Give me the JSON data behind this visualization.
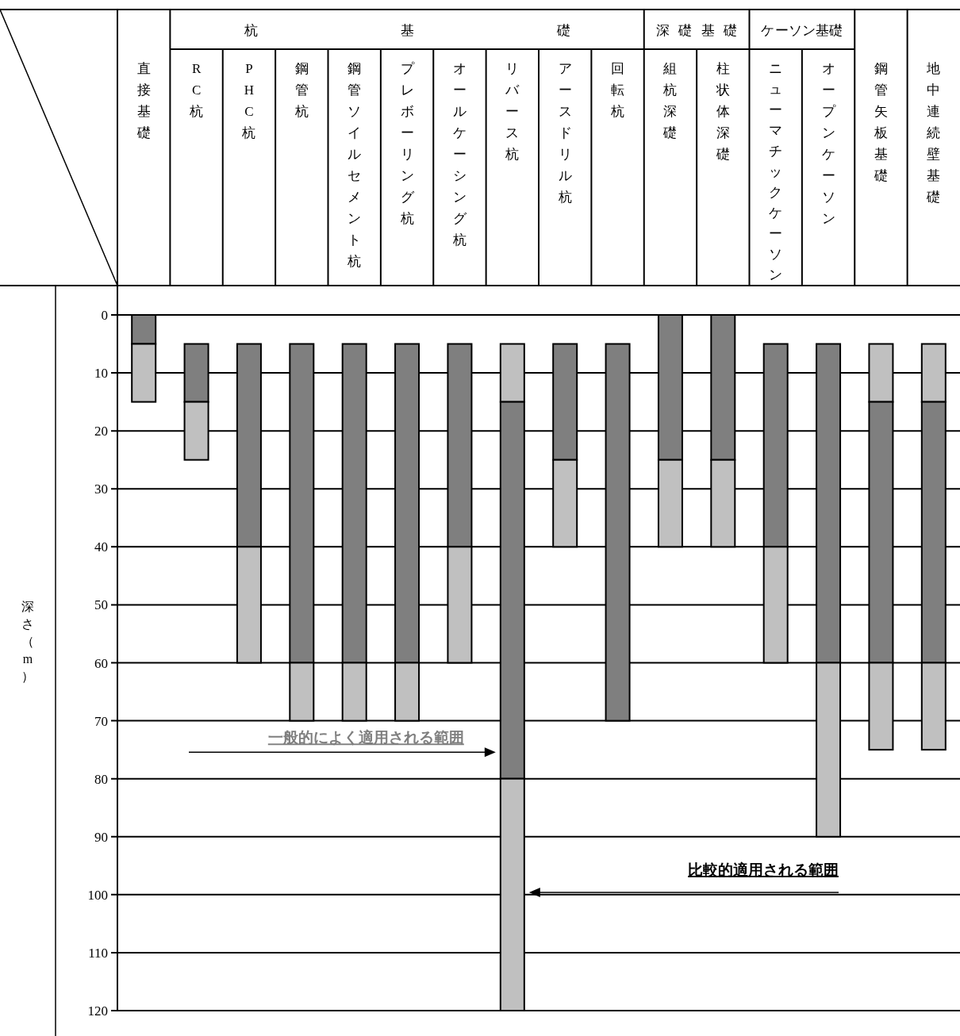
{
  "chart_data": {
    "type": "bar",
    "categories": [
      "直接基礎",
      "RC杭",
      "PHC杭",
      "鋼管杭",
      "鋼管ソイルセメント杭",
      "プレボーリング杭",
      "オールケーシング杭",
      "リバース杭",
      "アースドリル杭",
      "回転杭",
      "組杭深礎",
      "柱状体深礎",
      "ニューマチックケーソン",
      "オープンケーソン",
      "鋼管矢板基礎",
      "地中連続壁基礎"
    ],
    "ylabel": "深さ（m）",
    "annotations": [
      "杭基礎",
      "深礎基礎",
      "ケーソン基礎"
    ],
    "ylim": [
      120,
      0
    ],
    "yticks": [
      0,
      10,
      20,
      30,
      40,
      50,
      60,
      70,
      80,
      90,
      100,
      110,
      120
    ],
    "grid": "y",
    "series": [
      {
        "color": "#c0c0c0",
        "base": [
          null,
          null,
          null,
          null,
          null,
          null,
          null,
          5,
          null,
          null,
          null,
          null,
          null,
          null,
          5,
          5
        ],
        "values": [
          null,
          null,
          null,
          null,
          null,
          null,
          null,
          10,
          null,
          null,
          null,
          null,
          null,
          null,
          10,
          10
        ]
      },
      {
        "name": "一般的によく適用される範囲",
        "color": "#7f7f7f",
        "base": [
          0,
          5,
          5,
          5,
          5,
          5,
          5,
          15,
          5,
          5,
          0,
          0,
          5,
          5,
          15,
          15
        ],
        "values": [
          5,
          10,
          35,
          55,
          55,
          55,
          35,
          65,
          20,
          65,
          25,
          25,
          35,
          55,
          45,
          45
        ]
      },
      {
        "name": "比較的適用される範囲",
        "color": "#c0c0c0",
        "base": [
          5,
          15,
          40,
          60,
          60,
          60,
          40,
          80,
          25,
          null,
          25,
          25,
          40,
          60,
          60,
          60
        ],
        "values": [
          10,
          10,
          20,
          10,
          10,
          10,
          20,
          40,
          15,
          null,
          15,
          15,
          20,
          30,
          15,
          15
        ]
      }
    ]
  }
}
